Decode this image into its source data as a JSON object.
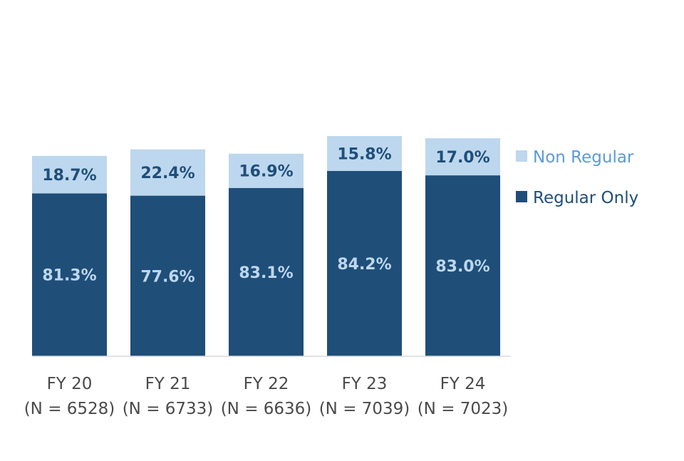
{
  "chart_data": {
    "type": "bar",
    "stacked": true,
    "normalized": true,
    "categories": [
      "FY 20",
      "FY 21",
      "FY 22",
      "FY 23",
      "FY 24"
    ],
    "category_sublabels": [
      "(N = 6528)",
      "(N = 6733)",
      "(N = 6636)",
      "(N = 7039)",
      "(N = 7023)"
    ],
    "series": [
      {
        "name": "Regular Only",
        "values": [
          81.3,
          77.6,
          83.1,
          84.2,
          83.0
        ],
        "labels": [
          "81.3%",
          "77.6%",
          "83.1%",
          "84.2%",
          "83.0%"
        ],
        "color": "#1f4e79",
        "label_color": "#bdd7ee"
      },
      {
        "name": "Non Regular",
        "values": [
          18.7,
          22.4,
          16.9,
          15.8,
          17.0
        ],
        "labels": [
          "18.7%",
          "22.4%",
          "16.9%",
          "15.8%",
          "17.0%"
        ],
        "color": "#bdd7ee",
        "label_color": "#1f4e79"
      }
    ],
    "bar_totals_relative": [
      0.91,
      0.94,
      0.92,
      1.0,
      0.99
    ],
    "legend": {
      "position": "right",
      "order": [
        "Non Regular",
        "Regular Only"
      ]
    },
    "grid": false,
    "axis_line_color": "#d9d9d9"
  }
}
